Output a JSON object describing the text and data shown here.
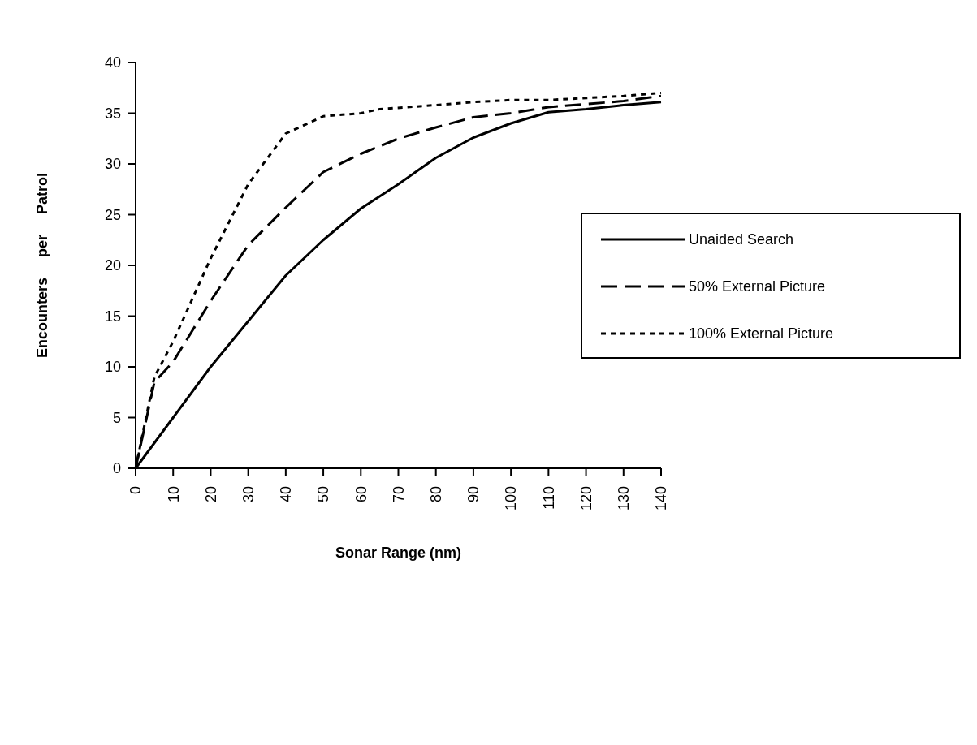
{
  "chart_data": {
    "type": "line",
    "xlabel": "Sonar Range (nm)",
    "ylabel": "Encounters per Patrol",
    "xlim": [
      0,
      140
    ],
    "xticks": [
      0,
      10,
      20,
      30,
      40,
      50,
      60,
      70,
      80,
      90,
      100,
      110,
      120,
      130,
      140
    ],
    "ylim": [
      0,
      40
    ],
    "yticks": [
      0,
      5,
      10,
      15,
      20,
      25,
      30,
      35,
      40
    ],
    "grid": false,
    "legend": "right",
    "series": [
      {
        "name": "Unaided Search",
        "color": "#000000",
        "line_style": "solid",
        "x": [
          0,
          10,
          20,
          30,
          40,
          50,
          60,
          70,
          80,
          90,
          100,
          110,
          120,
          130,
          140
        ],
        "values": [
          0,
          5,
          10,
          14.5,
          19,
          22.5,
          25.6,
          28,
          30.6,
          32.6,
          34,
          35.1,
          35.4,
          35.8,
          36.1
        ]
      },
      {
        "name": "50% External Picture",
        "color": "#000000",
        "line_style": "dashed",
        "x": [
          0,
          5,
          10,
          20,
          30,
          40,
          50,
          60,
          70,
          80,
          90,
          100,
          110,
          120,
          130,
          140
        ],
        "values": [
          0,
          8.5,
          10.5,
          16.5,
          22,
          25.7,
          29.2,
          31,
          32.5,
          33.6,
          34.6,
          35,
          35.6,
          35.9,
          36.2,
          36.7
        ]
      },
      {
        "name": "100% External Picture",
        "color": "#000000",
        "line_style": "dotted",
        "x": [
          0,
          5,
          10,
          20,
          30,
          40,
          50,
          60,
          65,
          80,
          90,
          100,
          110,
          120,
          130,
          140
        ],
        "values": [
          0,
          9,
          12.5,
          20.7,
          28,
          33,
          34.7,
          35,
          35.4,
          35.8,
          36.1,
          36.3,
          36.3,
          36.5,
          36.7,
          37
        ]
      }
    ]
  }
}
